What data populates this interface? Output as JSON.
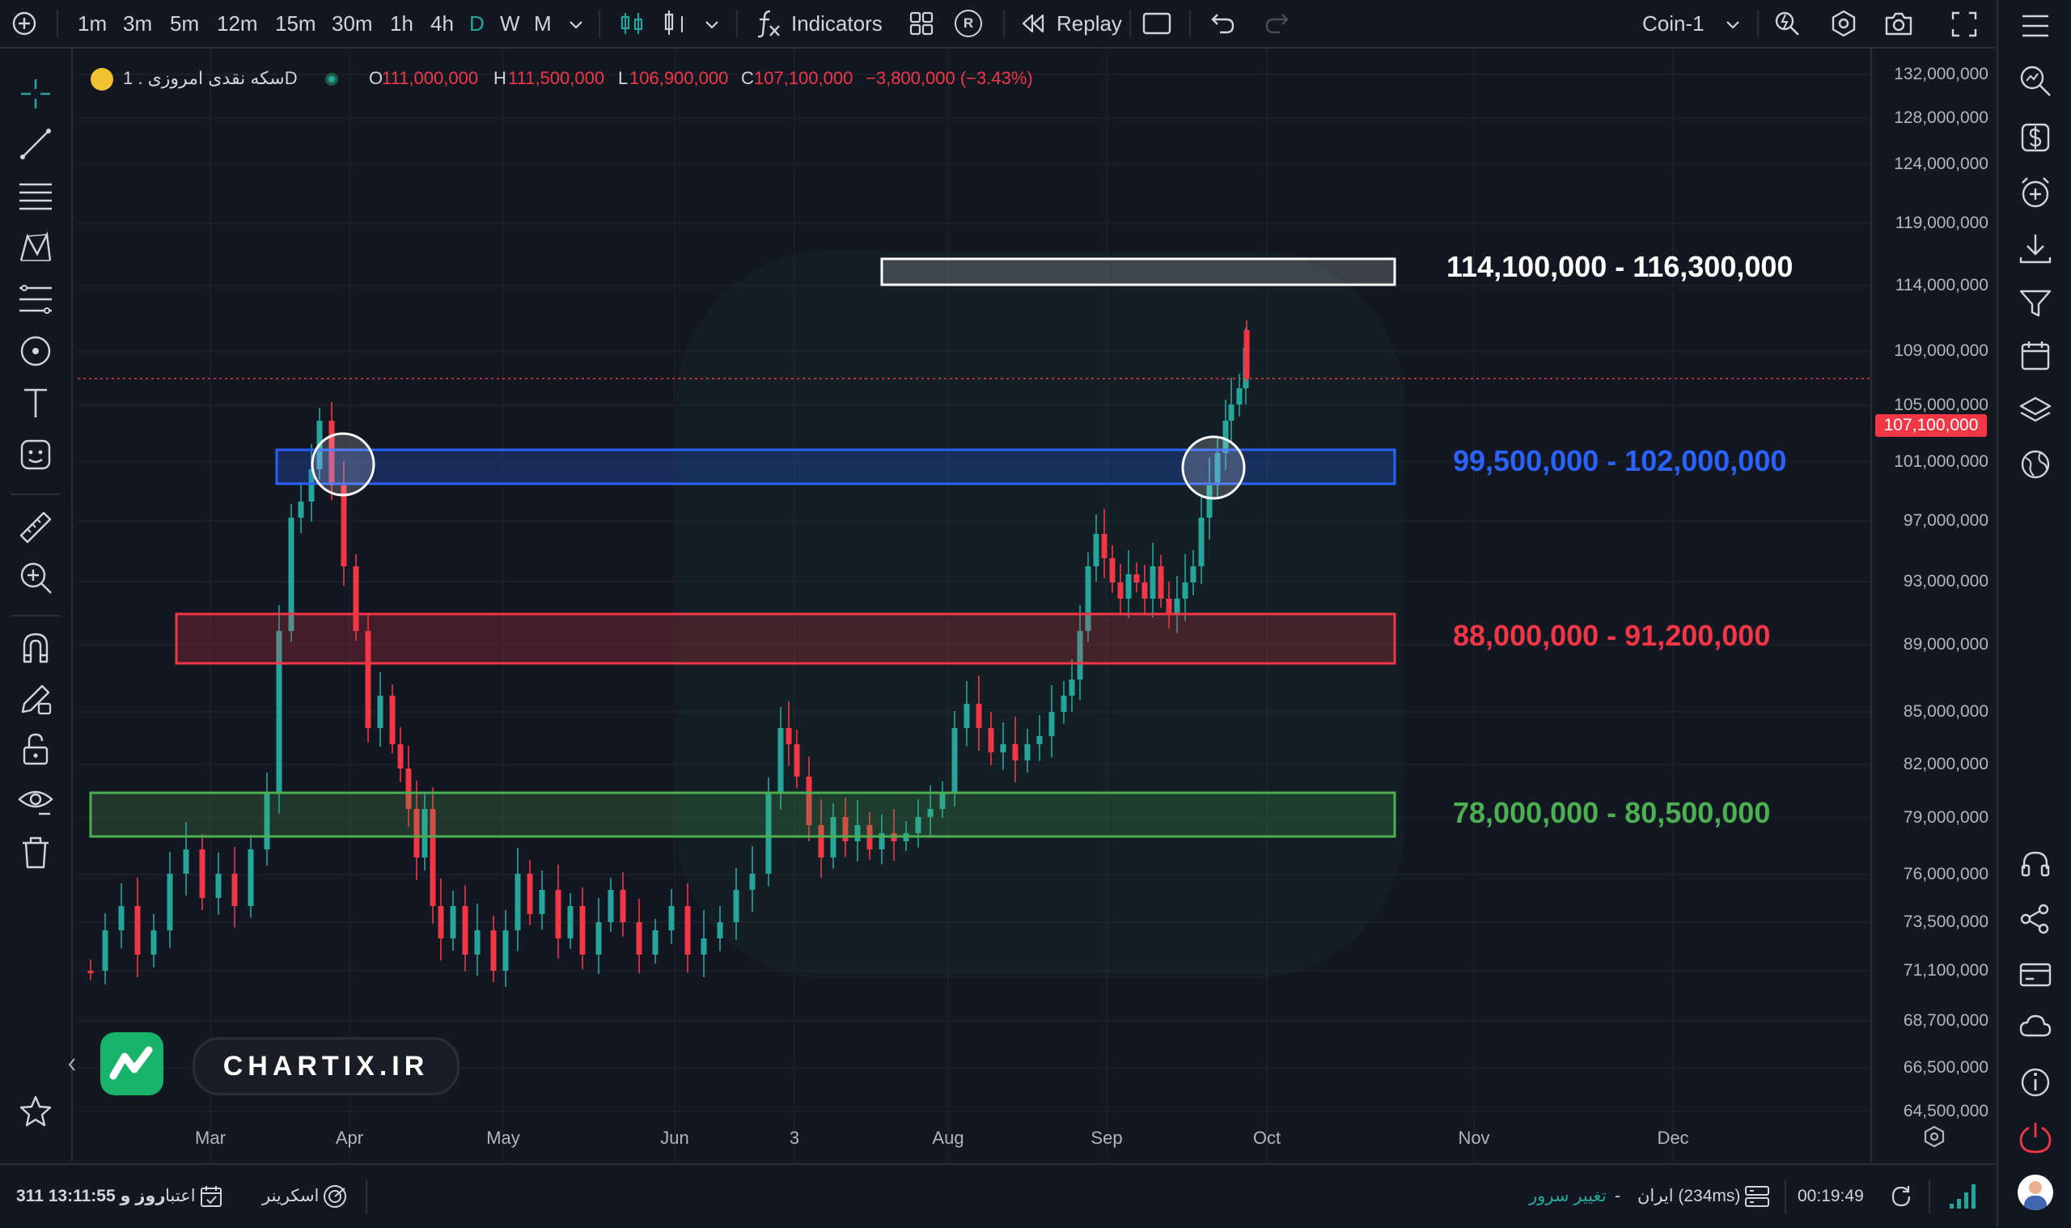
{
  "toolbar": {
    "intervals": [
      "1m",
      "3m",
      "5m",
      "12m",
      "15m",
      "30m",
      "1h",
      "4h",
      "D",
      "W",
      "M"
    ],
    "active_interval": "D",
    "indicators_label": "Indicators",
    "replay_label": "Replay",
    "layout_name": "Coin-1",
    "r_badge": "R"
  },
  "legend": {
    "symbol": "سکه نقدی امروزی . 1D",
    "open_label": "O",
    "open": "111,000,000",
    "high_label": "H",
    "high": "111,500,000",
    "low_label": "L",
    "low": "106,900,000",
    "close_label": "C",
    "close": "107,100,000",
    "change": "−3,800,000 (−3.43%)"
  },
  "price_axis": {
    "labels": [
      "132,000,000",
      "128,000,000",
      "124,000,000",
      "119,000,000",
      "114,000,000",
      "109,000,000",
      "105,000,000",
      "101,000,000",
      "97,000,000",
      "93,000,000",
      "89,000,000",
      "85,000,000",
      "82,000,000",
      "79,000,000",
      "76,000,000",
      "73,500,000",
      "71,100,000",
      "68,700,000",
      "66,500,000",
      "64,500,000"
    ],
    "current_price": "107,100,000"
  },
  "time_axis": {
    "labels": [
      "Mar",
      "Apr",
      "May",
      "Jun",
      "3",
      "Aug",
      "Sep",
      "Oct",
      "Nov",
      "Dec"
    ]
  },
  "zones": [
    {
      "label": "114,100,000 - 116,300,000",
      "color": "#ffffff"
    },
    {
      "label": "99,500,000 - 102,000,000",
      "color": "#2962ff"
    },
    {
      "label": "88,000,000 - 91,200,000",
      "color": "#f23645"
    },
    {
      "label": "78,000,000 - 80,500,000",
      "color": "#4caf50"
    }
  ],
  "watermark": {
    "text": "CHARTIX.IR"
  },
  "bottom": {
    "validity_label": "اعتبار",
    "validity_value": "311 روز و 13:11:55",
    "screener_label": "اسکرینر",
    "change_server_label": "تغییر سرور",
    "server_status": "ایران (234ms)",
    "dash": "-",
    "clock": "00:19:49"
  },
  "colors": {
    "up": "#26a69a",
    "down": "#f23645",
    "background": "#131722"
  }
}
